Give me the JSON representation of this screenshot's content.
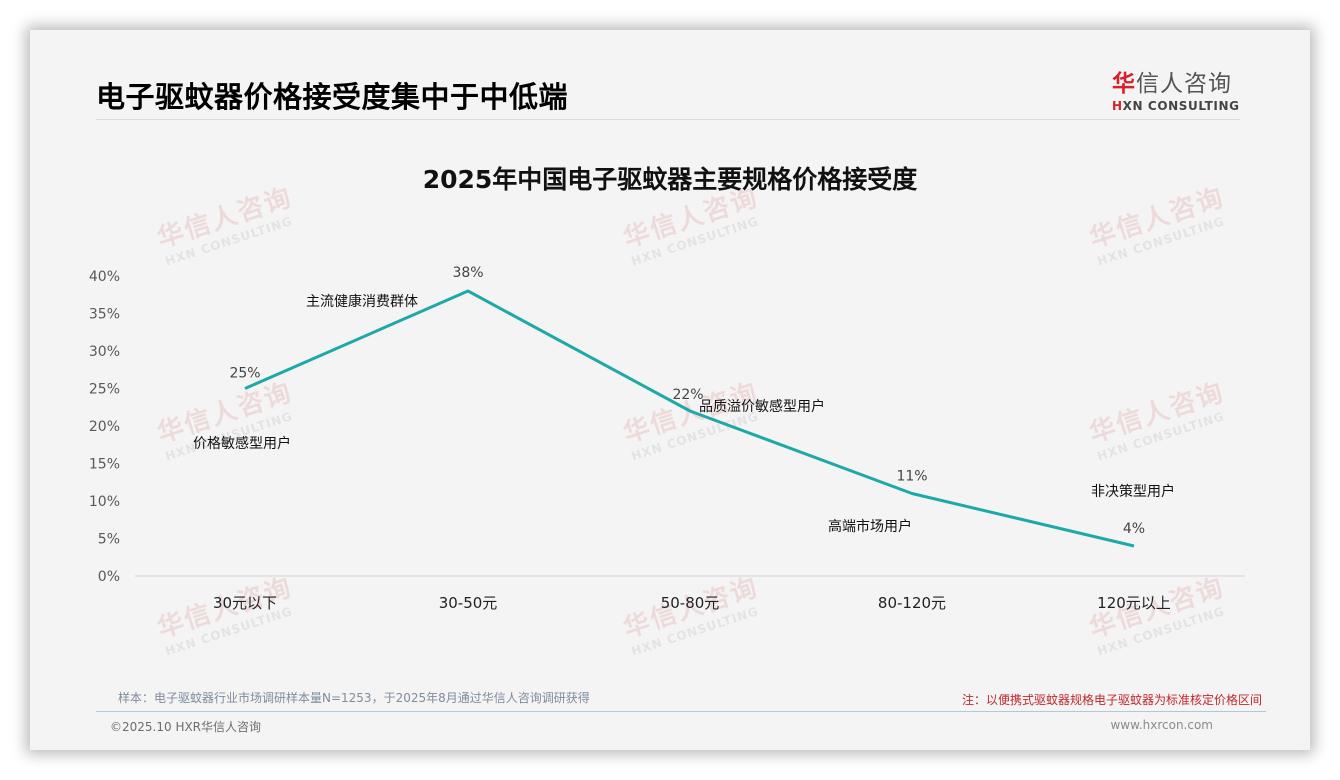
{
  "header": {
    "page_title": "电子驱蚊器价格接受度集中于中低端",
    "logo": {
      "cn_first": "华",
      "cn_rest": "信人咨询",
      "en_first": "H",
      "en_rest": "XN CONSULTING",
      "brand_color": "#d6202a"
    }
  },
  "watermark": {
    "cn": "华信人咨询",
    "en": "HXN CONSULTING"
  },
  "chart_data": {
    "type": "line",
    "title": "2025年中国电子驱蚊器主要规格价格接受度",
    "categories": [
      "30元以下",
      "30-50元",
      "50-80元",
      "80-120元",
      "120元以上"
    ],
    "series": [
      {
        "name": "价格接受度",
        "values": [
          25,
          38,
          22,
          11,
          4
        ],
        "color": "#1fa8a8"
      }
    ],
    "data_labels": [
      "25%",
      "38%",
      "22%",
      "11%",
      "4%"
    ],
    "annotations": [
      "价格敏感型用户",
      "主流健康消费群体",
      "品质溢价敏感型用户",
      "高端市场用户",
      "非决策型用户"
    ],
    "y_ticks": [
      "0%",
      "5%",
      "10%",
      "15%",
      "20%",
      "25%",
      "30%",
      "35%",
      "40%"
    ],
    "xlabel": "",
    "ylabel": "",
    "ylim": [
      0,
      40
    ],
    "grid": false,
    "legend": "none"
  },
  "footer": {
    "sample_note": "样本：电子驱蚊器行业市场调研样本量N=1253，于2025年8月通过华信人咨询调研获得",
    "note": "注：以便携式驱蚊器规格电子驱蚊器为标准核定价格区间",
    "copyright": "©2025.10 HXR华信人咨询",
    "website": "www.hxrcon.com"
  }
}
